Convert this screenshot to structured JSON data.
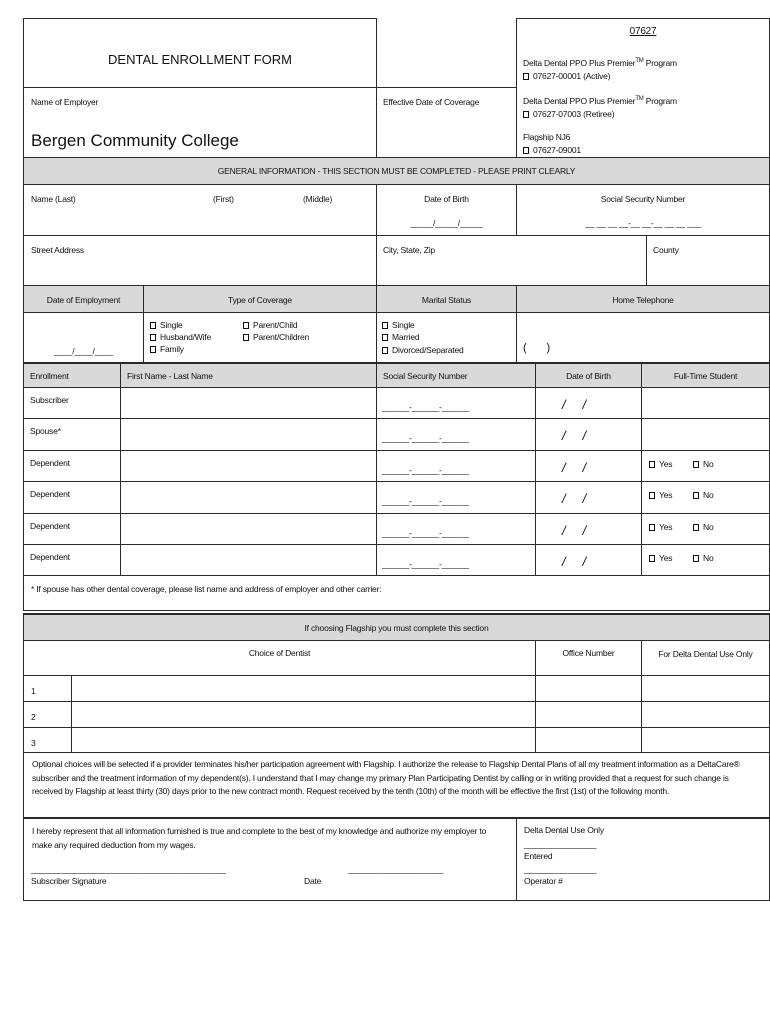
{
  "header": {
    "form_code": "07627",
    "title": "DENTAL ENROLLMENT FORM",
    "employer_label": "Name of Employer",
    "employer_value": "Bergen Community College",
    "effective_date_label": "Effective Date of Coverage",
    "programs": [
      {
        "name": "Delta Dental PPO Plus Premier",
        "tm": "TM",
        "suffix": " Program",
        "option": "07627-00001 (Active)"
      },
      {
        "name": "Delta Dental PPO Plus Premier",
        "tm": "TM",
        "suffix": " Program",
        "option": "07627-07003 (Retiree)"
      },
      {
        "name": "Flagship NJ6",
        "tm": "",
        "suffix": "",
        "option": "07627-09001"
      }
    ]
  },
  "general": {
    "banner": "GENERAL INFORMATION - THIS SECTION MUST BE COMPLETED - PLEASE PRINT CLEARLY",
    "name_last": "Name (Last)",
    "name_first": "(First)",
    "name_middle": "(Middle)",
    "dob_label": "Date of Birth",
    "dob_blank": "_____/_____/_____",
    "ssn_label": "Social Security Number",
    "ssn_blank": "__ __ __ __-__ __-__ __ __ ___",
    "street_label": "Street Address",
    "city_label": "City, State, Zip",
    "county_label": "County",
    "employment_label": "Date of Employment",
    "employment_blank": "____/____/____",
    "coverage_label": "Type of Coverage",
    "coverage_options": [
      "Single",
      "Husband/Wife",
      "Family",
      "Parent/Child",
      "Parent/Children"
    ],
    "marital_label": "Marital Status",
    "marital_options": [
      "Single",
      "Married",
      "Divorced/Separated"
    ],
    "phone_label": "Home Telephone",
    "phone_blank": "(       )"
  },
  "enrollment": {
    "headers": [
      "Enrollment",
      "First Name - Last Name",
      "Social Security Number",
      "Date of Birth",
      "Full-Time Student"
    ],
    "rows": [
      {
        "type": "Subscriber",
        "ssn": "______-______-______",
        "dob": "/     /",
        "student": false
      },
      {
        "type": "Spouse*",
        "ssn": "______-______-______",
        "dob": "/     /",
        "student": false
      },
      {
        "type": "Dependent",
        "ssn": "______-______-______",
        "dob": "/     /",
        "student": true
      },
      {
        "type": "Dependent",
        "ssn": "______-______-______",
        "dob": "/     /",
        "student": true
      },
      {
        "type": "Dependent",
        "ssn": "______-______-______",
        "dob": "/     /",
        "student": true
      },
      {
        "type": "Dependent",
        "ssn": "______-______-______",
        "dob": "/     /",
        "student": true
      }
    ],
    "yes_label": "Yes",
    "no_label": "No",
    "spouse_note": "* If spouse has other dental coverage, please list name and address of employer and other carrier:"
  },
  "flagship": {
    "banner": "If choosing Flagship you must complete this section",
    "headers": [
      "Choice of Dentist",
      "Office Number",
      "For Delta Dental Use Only"
    ],
    "rows": [
      "1",
      "2",
      "3"
    ],
    "disclaimer": "Optional choices will be selected if a provider terminates his/her participation agreement with Flagship.  I authorize the release to Flagship Dental Plans of all my treatment information as a DeltaCare® subscriber and the treatment information of my dependent(s).  I understand that I may change my primary Plan Participating Dentist by calling or in writing provided that a request for such change is received by Flagship at least thirty (30) days prior to the new contract month.  Request received by the tenth (10th) of the month will be effective the first (1st) of the following month."
  },
  "signature": {
    "statement": "I hereby represent that all information furnished is true and complete to the best of my knowledge and authorize my employer to make any required deduction from my wages.",
    "sig_line": "___________________________________________",
    "date_line": "_____________________",
    "sig_label": "Subscriber Signature",
    "date_label": "Date",
    "office_title": "Delta Dental Use Only",
    "office_line": "________________",
    "entered_label": "Entered",
    "operator_label": "Operator #"
  }
}
